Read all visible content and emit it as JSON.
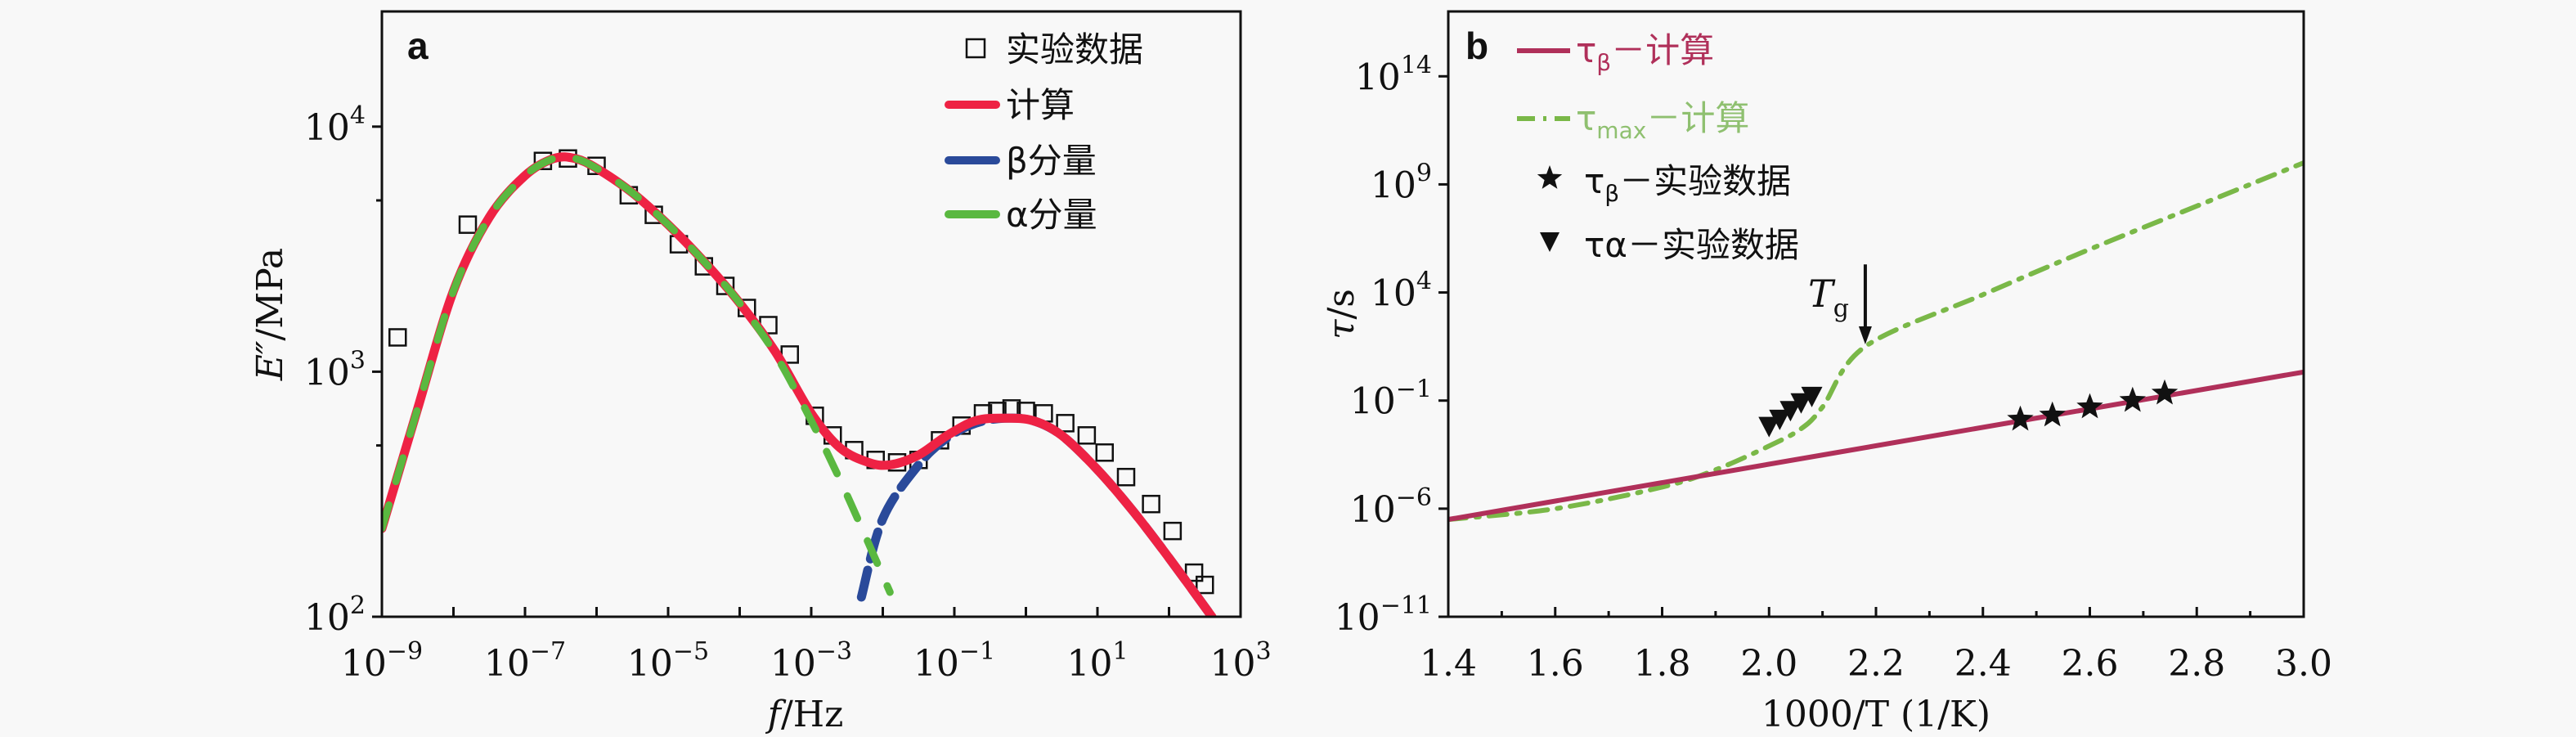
{
  "chart_data": [
    {
      "panel": "a",
      "type": "line",
      "xscale": "log",
      "yscale": "log",
      "xlabel": "f/Hz",
      "ylabel": "E″/MPa",
      "xlim_exp": [
        -9,
        3
      ],
      "ylim_exp": [
        2,
        4.47
      ],
      "x_ticks": [
        {
          "base": "10",
          "exp": "−9",
          "value_exp": -9
        },
        {
          "base": "10",
          "exp": "−7",
          "value_exp": -7
        },
        {
          "base": "10",
          "exp": "−5",
          "value_exp": -5
        },
        {
          "base": "10",
          "exp": "−3",
          "value_exp": -3
        },
        {
          "base": "10",
          "exp": "−1",
          "value_exp": -1
        },
        {
          "base": "10",
          "exp": "1",
          "value_exp": 1
        },
        {
          "base": "10",
          "exp": "3",
          "value_exp": 3
        }
      ],
      "y_ticks": [
        {
          "base": "10",
          "exp": "2",
          "value_exp": 2
        },
        {
          "base": "10",
          "exp": "3",
          "value_exp": 3
        },
        {
          "base": "10",
          "exp": "4",
          "value_exp": 4
        }
      ],
      "legend": [
        {
          "label": "实验数据",
          "marker": "open-square",
          "color": "#111111"
        },
        {
          "label": "计算",
          "marker": "line",
          "color": "#ee2244"
        },
        {
          "label": "β分量",
          "marker": "dash",
          "color": "#2a4a9a"
        },
        {
          "label": "α分量",
          "marker": "dash",
          "color": "#5ab840"
        }
      ],
      "legend_position": "top-right",
      "series": [
        {
          "name": "实验数据",
          "style": "markers",
          "points": [
            [
              -8.78,
              3.14
            ],
            [
              -7.8,
              3.6
            ],
            [
              -6.75,
              3.86
            ],
            [
              -6.4,
              3.87
            ],
            [
              -6.0,
              3.84
            ],
            [
              -5.55,
              3.72
            ],
            [
              -5.2,
              3.64
            ],
            [
              -4.85,
              3.52
            ],
            [
              -4.5,
              3.43
            ],
            [
              -4.2,
              3.35
            ],
            [
              -3.9,
              3.26
            ],
            [
              -3.6,
              3.19
            ],
            [
              -3.3,
              3.07
            ],
            [
              -2.95,
              2.82
            ],
            [
              -2.7,
              2.74
            ],
            [
              -2.4,
              2.68
            ],
            [
              -2.1,
              2.64
            ],
            [
              -1.8,
              2.63
            ],
            [
              -1.5,
              2.64
            ],
            [
              -1.2,
              2.72
            ],
            [
              -0.9,
              2.78
            ],
            [
              -0.6,
              2.83
            ],
            [
              -0.4,
              2.84
            ],
            [
              -0.2,
              2.85
            ],
            [
              0.0,
              2.84
            ],
            [
              0.25,
              2.83
            ],
            [
              0.55,
              2.79
            ],
            [
              0.85,
              2.74
            ],
            [
              1.1,
              2.67
            ],
            [
              1.4,
              2.57
            ],
            [
              1.75,
              2.46
            ],
            [
              2.05,
              2.35
            ],
            [
              2.35,
              2.18
            ],
            [
              2.5,
              2.13
            ]
          ]
        },
        {
          "name": "计算",
          "style": "solid",
          "points": [
            [
              -9.0,
              2.36
            ],
            [
              -8.5,
              2.85
            ],
            [
              -8.0,
              3.33
            ],
            [
              -7.5,
              3.63
            ],
            [
              -7.0,
              3.8
            ],
            [
              -6.6,
              3.87
            ],
            [
              -6.3,
              3.87
            ],
            [
              -6.0,
              3.83
            ],
            [
              -5.5,
              3.73
            ],
            [
              -5.0,
              3.6
            ],
            [
              -4.5,
              3.45
            ],
            [
              -4.0,
              3.28
            ],
            [
              -3.5,
              3.08
            ],
            [
              -3.0,
              2.83
            ],
            [
              -2.6,
              2.69
            ],
            [
              -2.2,
              2.63
            ],
            [
              -1.9,
              2.62
            ],
            [
              -1.5,
              2.66
            ],
            [
              -1.1,
              2.74
            ],
            [
              -0.7,
              2.8
            ],
            [
              -0.3,
              2.81
            ],
            [
              0.1,
              2.8
            ],
            [
              0.5,
              2.74
            ],
            [
              1.0,
              2.6
            ],
            [
              1.5,
              2.43
            ],
            [
              2.0,
              2.24
            ],
            [
              2.6,
              2.0
            ]
          ]
        },
        {
          "name": "β分量",
          "style": "dashed",
          "points": [
            [
              -2.3,
              2.08
            ],
            [
              -2.0,
              2.4
            ],
            [
              -1.5,
              2.62
            ],
            [
              -1.1,
              2.73
            ],
            [
              -0.7,
              2.79
            ],
            [
              -0.3,
              2.81
            ],
            [
              0.1,
              2.8
            ],
            [
              0.5,
              2.74
            ],
            [
              1.0,
              2.6
            ],
            [
              1.5,
              2.43
            ],
            [
              2.0,
              2.24
            ],
            [
              2.6,
              2.0
            ]
          ]
        },
        {
          "name": "α分量",
          "style": "dashed",
          "points": [
            [
              -9.0,
              2.36
            ],
            [
              -8.5,
              2.85
            ],
            [
              -8.0,
              3.33
            ],
            [
              -7.5,
              3.63
            ],
            [
              -7.0,
              3.8
            ],
            [
              -6.6,
              3.87
            ],
            [
              -6.3,
              3.87
            ],
            [
              -6.0,
              3.83
            ],
            [
              -5.5,
              3.73
            ],
            [
              -5.0,
              3.6
            ],
            [
              -4.5,
              3.45
            ],
            [
              -4.0,
              3.28
            ],
            [
              -3.5,
              3.07
            ],
            [
              -3.0,
              2.8
            ],
            [
              -2.6,
              2.56
            ],
            [
              -2.2,
              2.3
            ],
            [
              -1.9,
              2.1
            ]
          ]
        }
      ]
    },
    {
      "panel": "b",
      "type": "line",
      "xscale": "linear",
      "yscale": "log",
      "xlabel": "1000/T (1/K)",
      "ylabel": "τ/s",
      "xlim": [
        1.4,
        3.0
      ],
      "ylim_exp": [
        -11,
        17
      ],
      "x_ticks": [
        "1.4",
        "1.6",
        "1.8",
        "2.0",
        "2.2",
        "2.4",
        "2.6",
        "2.8",
        "3.0"
      ],
      "y_ticks": [
        {
          "base": "10",
          "exp": "−11",
          "value_exp": -11
        },
        {
          "base": "10",
          "exp": "−6",
          "value_exp": -6
        },
        {
          "base": "10",
          "exp": "−1",
          "value_exp": -1
        },
        {
          "base": "10",
          "exp": "4",
          "value_exp": 4
        },
        {
          "base": "10",
          "exp": "9",
          "value_exp": 9
        },
        {
          "base": "10",
          "exp": "14",
          "value_exp": 14
        }
      ],
      "legend": [
        {
          "tau": "τ",
          "sub": "β",
          "rest": "－计算",
          "marker": "line",
          "color": "#b0305a"
        },
        {
          "tau": "τ",
          "sub": "max",
          "rest": "－计算",
          "marker": "dash-dot",
          "color": "#7ab848"
        },
        {
          "tau": "τ",
          "sub": "β",
          "rest": "－实验数据",
          "marker": "star",
          "color": "#111111"
        },
        {
          "tau": "τα",
          "sub": "",
          "rest": "－实验数据",
          "marker": "down-triangle",
          "color": "#111111"
        }
      ],
      "legend_position": "top-left",
      "annotation": {
        "text": "T",
        "sub": "g",
        "x": 2.18,
        "arrow_from_exp": 5.3,
        "arrow_to_exp": 1.6
      },
      "series": [
        {
          "name": "τβ－计算",
          "style": "solid",
          "points": [
            [
              1.4,
              -6.5
            ],
            [
              3.0,
              0.32
            ]
          ]
        },
        {
          "name": "τmax－计算",
          "style": "dash-dot",
          "points": [
            [
              1.4,
              -6.5
            ],
            [
              1.6,
              -6.0
            ],
            [
              1.8,
              -5.0
            ],
            [
              1.9,
              -4.2
            ],
            [
              2.0,
              -3.1
            ],
            [
              2.06,
              -2.3
            ],
            [
              2.1,
              -1.3
            ],
            [
              2.18,
              1.5
            ],
            [
              2.4,
              3.9
            ],
            [
              2.6,
              6.0
            ],
            [
              2.8,
              8.0
            ],
            [
              3.0,
              10.0
            ]
          ]
        },
        {
          "name": "τβ－实验数据",
          "style": "star",
          "points": [
            [
              2.47,
              -1.87
            ],
            [
              2.53,
              -1.68
            ],
            [
              2.6,
              -1.3
            ],
            [
              2.68,
              -1.0
            ],
            [
              2.74,
              -0.66
            ]
          ]
        },
        {
          "name": "τα－实验数据",
          "style": "down-triangle",
          "points": [
            [
              2.0,
              -2.13
            ],
            [
              2.02,
              -1.8
            ],
            [
              2.04,
              -1.4
            ],
            [
              2.06,
              -1.04
            ],
            [
              2.08,
              -0.74
            ]
          ]
        }
      ]
    }
  ],
  "labels": {
    "panel_a": "a",
    "panel_b": "b",
    "a_xlabel_italic": "f",
    "a_xlabel_unit": "/Hz",
    "a_ylabel_italic": "E″",
    "a_ylabel_unit": "/MPa",
    "b_xlabel": "1000/T (1/K)",
    "b_ylabel_italic": "τ",
    "b_ylabel_unit": "/s"
  }
}
